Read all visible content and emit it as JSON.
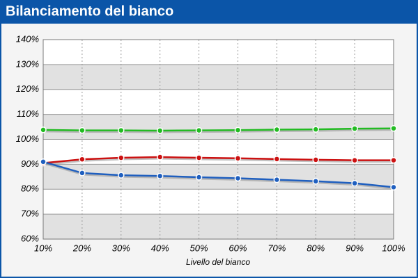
{
  "chart_data": {
    "type": "line",
    "title": "Bilanciamento del bianco",
    "x_label": "Livello del bianco",
    "categories": [
      "10%",
      "20%",
      "30%",
      "40%",
      "50%",
      "60%",
      "70%",
      "80%",
      "90%",
      "100%"
    ],
    "series": [
      {
        "color": "#22bb22",
        "values": [
          103.8,
          103.6,
          103.6,
          103.5,
          103.6,
          103.7,
          103.9,
          104.0,
          104.3,
          104.4
        ]
      },
      {
        "color": "#cc1111",
        "values": [
          90.5,
          92.0,
          92.6,
          92.9,
          92.6,
          92.4,
          92.1,
          91.8,
          91.6,
          91.6
        ]
      },
      {
        "color": "#1f5fbf",
        "values": [
          91.0,
          86.5,
          85.6,
          85.3,
          84.8,
          84.4,
          83.8,
          83.2,
          82.4,
          80.8
        ]
      }
    ],
    "ylim": [
      60,
      140
    ],
    "yticks": [
      {
        "value": 60,
        "label": "60%"
      },
      {
        "value": 70,
        "label": "70%"
      },
      {
        "value": 80,
        "label": "80%"
      },
      {
        "value": 90,
        "label": "90%"
      },
      {
        "value": 100,
        "label": "100%"
      },
      {
        "value": 110,
        "label": "110%"
      },
      {
        "value": 120,
        "label": "120%"
      },
      {
        "value": 130,
        "label": "130%"
      },
      {
        "value": 140,
        "label": "140%"
      }
    ],
    "grid": true
  }
}
